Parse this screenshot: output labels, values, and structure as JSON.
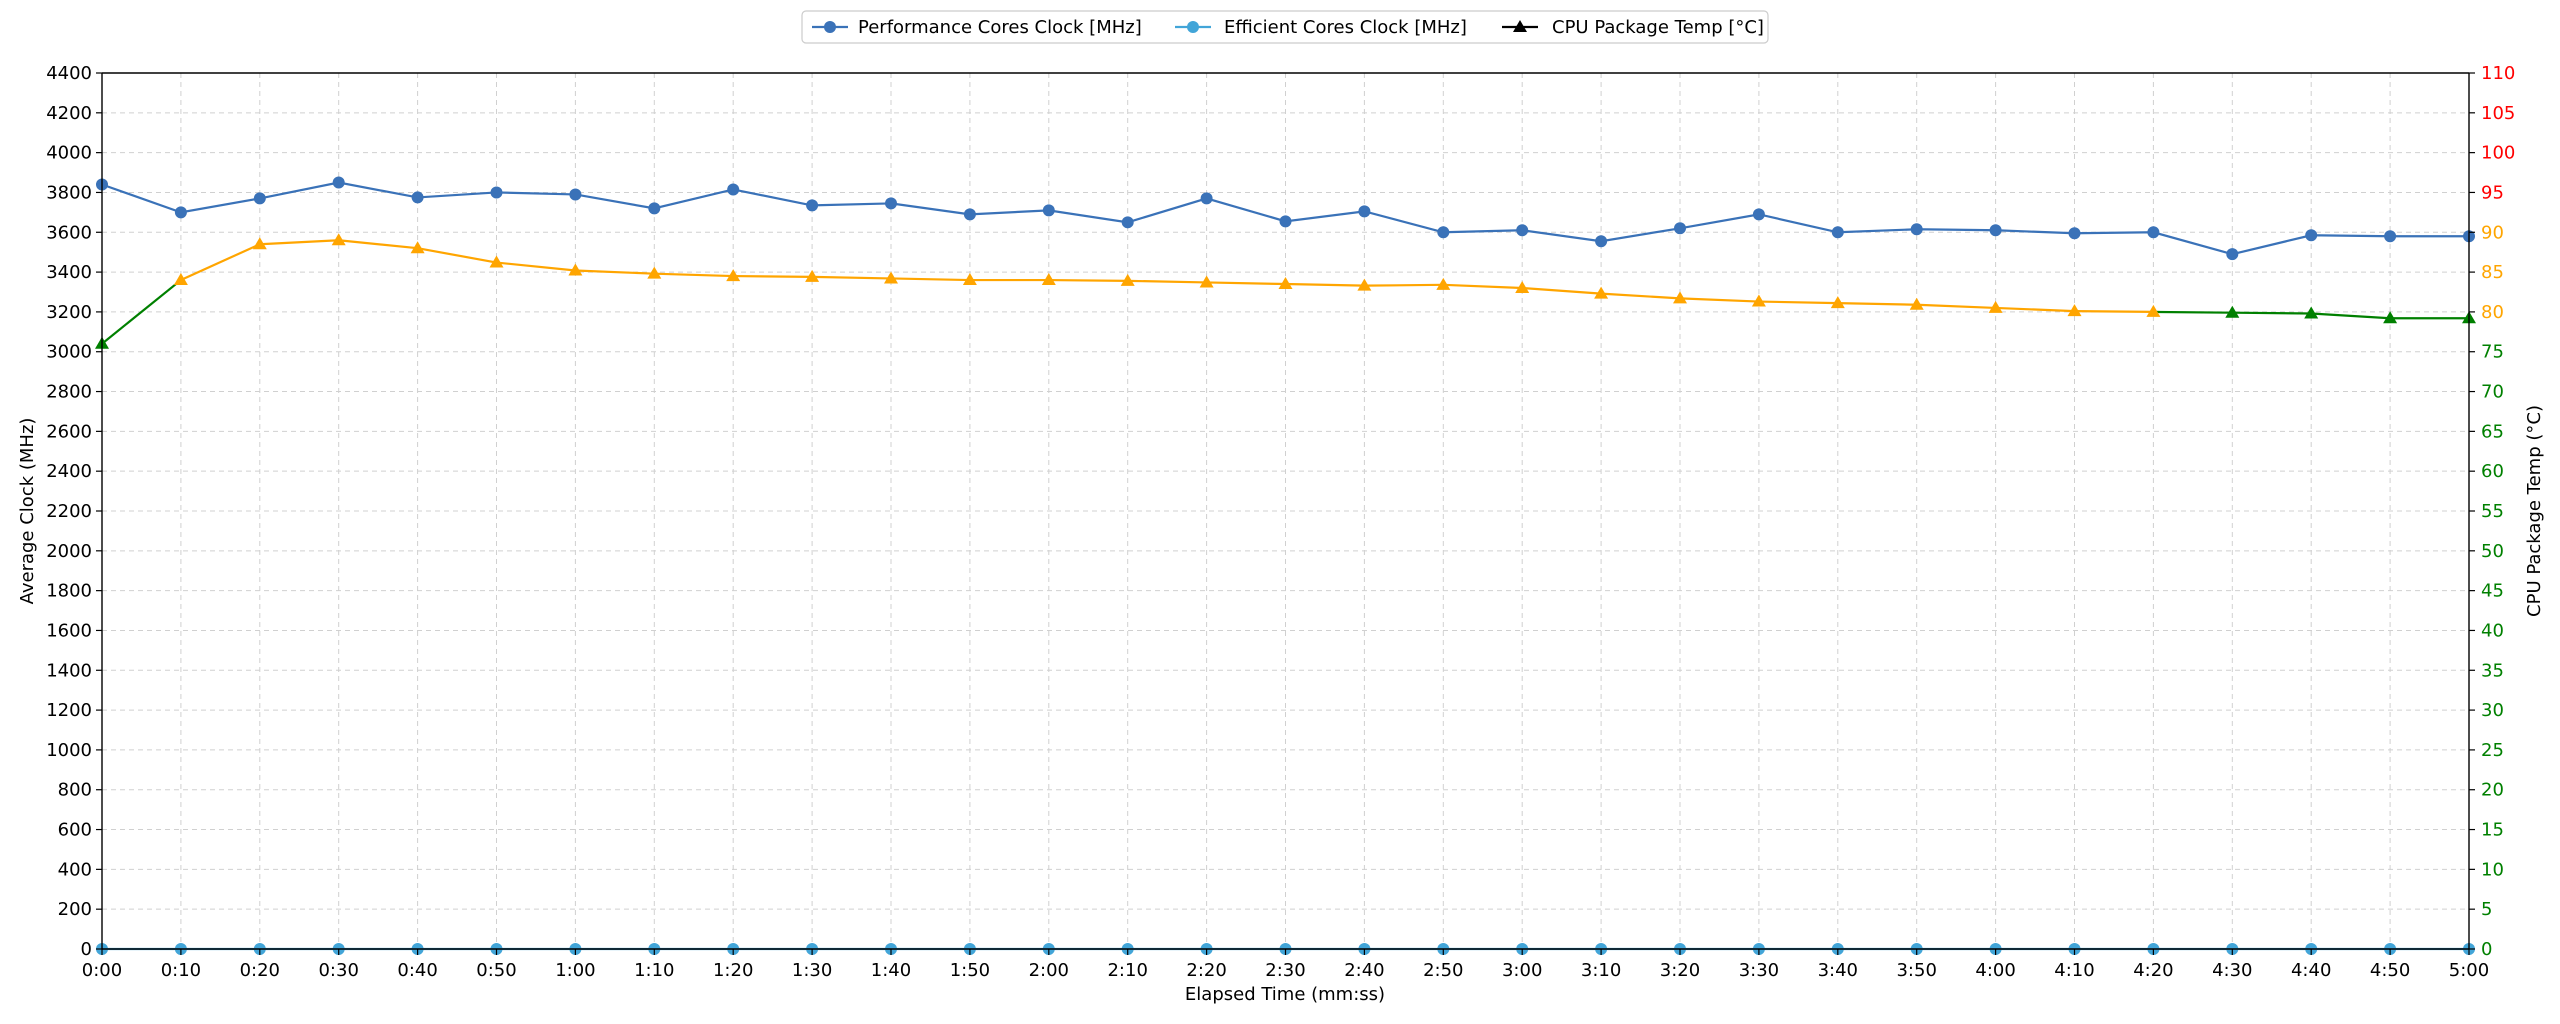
{
  "chart_data": {
    "type": "line",
    "xlabel": "Elapsed Time (mm:ss)",
    "ylabel": "Average Clock (MHz)",
    "y2label": "CPU Package Temp (°C)",
    "x": [
      "0:00",
      "0:10",
      "0:20",
      "0:30",
      "0:40",
      "0:50",
      "1:00",
      "1:10",
      "1:20",
      "1:30",
      "1:40",
      "1:50",
      "2:00",
      "2:10",
      "2:20",
      "2:30",
      "2:40",
      "2:50",
      "3:00",
      "3:10",
      "3:20",
      "3:30",
      "3:40",
      "3:50",
      "4:00",
      "4:10",
      "4:20",
      "4:30",
      "4:40",
      "4:50",
      "5:00"
    ],
    "ylim": [
      0,
      4400
    ],
    "y_ticks": [
      0,
      200,
      400,
      600,
      800,
      1000,
      1200,
      1400,
      1600,
      1800,
      2000,
      2200,
      2400,
      2600,
      2800,
      3000,
      3200,
      3400,
      3600,
      3800,
      4000,
      4200,
      4400
    ],
    "y2lim": [
      0,
      110
    ],
    "y2_ticks": [
      0,
      5,
      10,
      15,
      20,
      25,
      30,
      35,
      40,
      45,
      50,
      55,
      60,
      65,
      70,
      75,
      80,
      85,
      90,
      95,
      100,
      105,
      110
    ],
    "y2_tick_colors": {
      "0-75": "#008000",
      "80-90": "#ffa500",
      "95-110": "#ff0000"
    },
    "grid": true,
    "legend_position": "top-center",
    "series": [
      {
        "name": "Performance Cores Clock [MHz]",
        "axis": "left",
        "marker": "circle",
        "color": "#3a72b8",
        "values": [
          3840,
          3700,
          3770,
          3850,
          3775,
          3800,
          3790,
          3720,
          3815,
          3735,
          3745,
          3690,
          3710,
          3650,
          3770,
          3655,
          3705,
          3600,
          3610,
          3555,
          3620,
          3690,
          3600,
          3615,
          3610,
          3595,
          3600,
          3490,
          3585,
          3580,
          3580
        ]
      },
      {
        "name": "Efficient Cores Clock [MHz]",
        "axis": "left",
        "marker": "circle",
        "color": "#42a5d8",
        "values": [
          0,
          0,
          0,
          0,
          0,
          0,
          0,
          0,
          0,
          0,
          0,
          0,
          0,
          0,
          0,
          0,
          0,
          0,
          0,
          0,
          0,
          0,
          0,
          0,
          0,
          0,
          0,
          0,
          0,
          0,
          0
        ]
      },
      {
        "name": "CPU Package Temp [°C]",
        "axis": "right",
        "marker": "triangle",
        "color": "#000000",
        "segment_colors": {
          "hot": "#ffa500",
          "warm": "#008000"
        },
        "values": [
          76,
          84,
          88.5,
          89,
          88,
          86.2,
          85.2,
          84.8,
          84.5,
          84.4,
          84.2,
          84.0,
          84.0,
          83.9,
          83.7,
          83.5,
          83.3,
          83.4,
          83.0,
          82.3,
          81.7,
          81.3,
          81.1,
          80.9,
          80.5,
          80.1,
          80.0,
          79.9,
          79.8,
          79.2,
          79.2
        ]
      }
    ]
  }
}
